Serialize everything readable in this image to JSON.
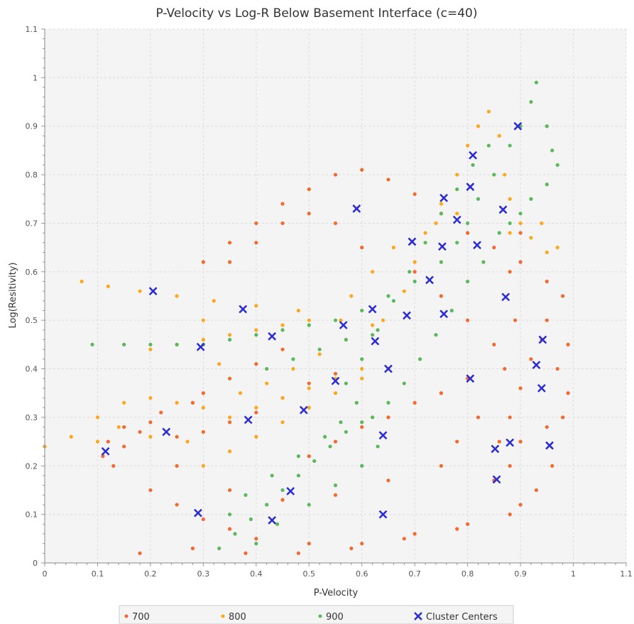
{
  "chart_data": {
    "type": "scatter",
    "title": "P-Velocity vs Log-R Below Basement Interface (c=40)",
    "xlabel": "P-Velocity",
    "ylabel": "Log(Resitivity)",
    "xlim": [
      0,
      1.1
    ],
    "ylim": [
      0,
      1.1
    ],
    "xticks": [
      "0",
      "0.1",
      "0.2",
      "0.3",
      "0.4",
      "0.5",
      "0.6",
      "0.7",
      "0.8",
      "0.9",
      "1",
      "1.1"
    ],
    "yticks": [
      "0",
      "0.1",
      "0.2",
      "0.3",
      "0.4",
      "0.5",
      "0.6",
      "0.7",
      "0.8",
      "0.9",
      "1",
      "1.1"
    ],
    "grid": true,
    "legend_position": "bottom",
    "colors": {
      "700": "#f26a2e",
      "800": "#fca81c",
      "900": "#5cb85c",
      "centers": "#2a2ad6",
      "plot_bg": "#f4f4f4",
      "grid": "#dcdcdc"
    },
    "series": [
      {
        "name": "700",
        "color": "#f26a2e",
        "points": [
          [
            0.11,
            0.22
          ],
          [
            0.13,
            0.2
          ],
          [
            0.15,
            0.24
          ],
          [
            0.18,
            0.27
          ],
          [
            0.2,
            0.29
          ],
          [
            0.25,
            0.26
          ],
          [
            0.3,
            0.27
          ],
          [
            0.35,
            0.29
          ],
          [
            0.4,
            0.31
          ],
          [
            0.45,
            0.34
          ],
          [
            0.5,
            0.37
          ],
          [
            0.55,
            0.39
          ],
          [
            0.2,
            0.15
          ],
          [
            0.25,
            0.12
          ],
          [
            0.3,
            0.09
          ],
          [
            0.35,
            0.07
          ],
          [
            0.4,
            0.05
          ],
          [
            0.5,
            0.04
          ],
          [
            0.6,
            0.04
          ],
          [
            0.7,
            0.06
          ],
          [
            0.8,
            0.08
          ],
          [
            0.9,
            0.12
          ],
          [
            0.3,
            0.62
          ],
          [
            0.35,
            0.66
          ],
          [
            0.4,
            0.7
          ],
          [
            0.45,
            0.74
          ],
          [
            0.5,
            0.77
          ],
          [
            0.55,
            0.8
          ],
          [
            0.6,
            0.81
          ],
          [
            0.65,
            0.79
          ],
          [
            0.7,
            0.76
          ],
          [
            0.75,
            0.72
          ],
          [
            0.8,
            0.68
          ],
          [
            0.85,
            0.65
          ],
          [
            0.9,
            0.62
          ],
          [
            0.95,
            0.58
          ],
          [
            0.98,
            0.55
          ],
          [
            0.85,
            0.17
          ],
          [
            0.86,
            0.25
          ],
          [
            0.88,
            0.3
          ],
          [
            0.9,
            0.36
          ],
          [
            0.92,
            0.42
          ],
          [
            0.94,
            0.46
          ],
          [
            0.95,
            0.5
          ],
          [
            0.97,
            0.4
          ],
          [
            0.98,
            0.3
          ],
          [
            0.96,
            0.2
          ],
          [
            0.93,
            0.15
          ],
          [
            0.88,
            0.2
          ],
          [
            0.87,
            0.4
          ],
          [
            0.89,
            0.5
          ],
          [
            0.88,
            0.6
          ],
          [
            0.9,
            0.68
          ],
          [
            0.5,
            0.22
          ],
          [
            0.55,
            0.25
          ],
          [
            0.6,
            0.28
          ],
          [
            0.65,
            0.3
          ],
          [
            0.7,
            0.33
          ],
          [
            0.75,
            0.35
          ],
          [
            0.8,
            0.38
          ],
          [
            0.3,
            0.35
          ],
          [
            0.35,
            0.38
          ],
          [
            0.4,
            0.41
          ],
          [
            0.45,
            0.44
          ],
          [
            0.25,
            0.2
          ],
          [
            0.35,
            0.15
          ],
          [
            0.45,
            0.13
          ],
          [
            0.55,
            0.14
          ],
          [
            0.65,
            0.17
          ],
          [
            0.75,
            0.2
          ],
          [
            0.6,
            0.65
          ],
          [
            0.55,
            0.7
          ],
          [
            0.5,
            0.72
          ],
          [
            0.45,
            0.7
          ],
          [
            0.4,
            0.66
          ],
          [
            0.35,
            0.62
          ],
          [
            0.7,
            0.6
          ],
          [
            0.75,
            0.55
          ],
          [
            0.8,
            0.5
          ],
          [
            0.85,
            0.45
          ],
          [
            0.78,
            0.25
          ],
          [
            0.82,
            0.3
          ],
          [
            0.9,
            0.25
          ],
          [
            0.95,
            0.28
          ],
          [
            0.99,
            0.45
          ],
          [
            0.99,
            0.35
          ],
          [
            0.18,
            0.02
          ],
          [
            0.28,
            0.03
          ],
          [
            0.38,
            0.02
          ],
          [
            0.48,
            0.02
          ],
          [
            0.58,
            0.03
          ],
          [
            0.68,
            0.05
          ],
          [
            0.78,
            0.07
          ],
          [
            0.88,
            0.1
          ],
          [
            0.12,
            0.25
          ],
          [
            0.15,
            0.28
          ],
          [
            0.22,
            0.31
          ],
          [
            0.28,
            0.33
          ]
        ]
      },
      {
        "name": "800",
        "color": "#fca81c",
        "points": [
          [
            0.0,
            0.24
          ],
          [
            0.05,
            0.26
          ],
          [
            0.1,
            0.3
          ],
          [
            0.15,
            0.33
          ],
          [
            0.2,
            0.34
          ],
          [
            0.25,
            0.33
          ],
          [
            0.3,
            0.32
          ],
          [
            0.35,
            0.3
          ],
          [
            0.4,
            0.32
          ],
          [
            0.45,
            0.34
          ],
          [
            0.5,
            0.36
          ],
          [
            0.55,
            0.38
          ],
          [
            0.6,
            0.4
          ],
          [
            0.07,
            0.58
          ],
          [
            0.12,
            0.57
          ],
          [
            0.18,
            0.56
          ],
          [
            0.25,
            0.55
          ],
          [
            0.32,
            0.54
          ],
          [
            0.4,
            0.53
          ],
          [
            0.48,
            0.52
          ],
          [
            0.56,
            0.5
          ],
          [
            0.64,
            0.5
          ],
          [
            0.68,
            0.56
          ],
          [
            0.7,
            0.62
          ],
          [
            0.72,
            0.68
          ],
          [
            0.75,
            0.74
          ],
          [
            0.78,
            0.8
          ],
          [
            0.8,
            0.86
          ],
          [
            0.82,
            0.9
          ],
          [
            0.84,
            0.93
          ],
          [
            0.86,
            0.88
          ],
          [
            0.87,
            0.8
          ],
          [
            0.88,
            0.75
          ],
          [
            0.9,
            0.7
          ],
          [
            0.92,
            0.67
          ],
          [
            0.95,
            0.64
          ],
          [
            0.97,
            0.65
          ],
          [
            0.94,
            0.7
          ],
          [
            0.88,
            0.68
          ],
          [
            0.2,
            0.44
          ],
          [
            0.25,
            0.45
          ],
          [
            0.3,
            0.46
          ],
          [
            0.35,
            0.47
          ],
          [
            0.4,
            0.48
          ],
          [
            0.45,
            0.49
          ],
          [
            0.5,
            0.5
          ],
          [
            0.3,
            0.2
          ],
          [
            0.35,
            0.23
          ],
          [
            0.4,
            0.26
          ],
          [
            0.45,
            0.29
          ],
          [
            0.5,
            0.32
          ],
          [
            0.55,
            0.35
          ],
          [
            0.6,
            0.38
          ],
          [
            0.65,
            0.4
          ],
          [
            0.3,
            0.5
          ],
          [
            0.33,
            0.41
          ],
          [
            0.37,
            0.35
          ],
          [
            0.42,
            0.37
          ],
          [
            0.47,
            0.4
          ],
          [
            0.52,
            0.43
          ],
          [
            0.57,
            0.46
          ],
          [
            0.62,
            0.49
          ],
          [
            0.1,
            0.25
          ],
          [
            0.14,
            0.28
          ],
          [
            0.2,
            0.26
          ],
          [
            0.27,
            0.25
          ],
          [
            0.58,
            0.55
          ],
          [
            0.62,
            0.6
          ],
          [
            0.66,
            0.65
          ],
          [
            0.74,
            0.7
          ],
          [
            0.78,
            0.72
          ]
        ]
      },
      {
        "name": "900",
        "color": "#5cb85c",
        "points": [
          [
            0.09,
            0.45
          ],
          [
            0.15,
            0.45
          ],
          [
            0.2,
            0.45
          ],
          [
            0.25,
            0.45
          ],
          [
            0.3,
            0.45
          ],
          [
            0.35,
            0.46
          ],
          [
            0.4,
            0.47
          ],
          [
            0.45,
            0.48
          ],
          [
            0.5,
            0.49
          ],
          [
            0.55,
            0.5
          ],
          [
            0.6,
            0.52
          ],
          [
            0.65,
            0.55
          ],
          [
            0.7,
            0.58
          ],
          [
            0.75,
            0.62
          ],
          [
            0.78,
            0.66
          ],
          [
            0.8,
            0.7
          ],
          [
            0.82,
            0.75
          ],
          [
            0.85,
            0.8
          ],
          [
            0.88,
            0.86
          ],
          [
            0.9,
            0.9
          ],
          [
            0.92,
            0.95
          ],
          [
            0.93,
            0.99
          ],
          [
            0.95,
            0.9
          ],
          [
            0.96,
            0.85
          ],
          [
            0.97,
            0.82
          ],
          [
            0.95,
            0.78
          ],
          [
            0.92,
            0.75
          ],
          [
            0.9,
            0.72
          ],
          [
            0.88,
            0.7
          ],
          [
            0.86,
            0.68
          ],
          [
            0.83,
            0.62
          ],
          [
            0.8,
            0.58
          ],
          [
            0.77,
            0.52
          ],
          [
            0.74,
            0.47
          ],
          [
            0.71,
            0.42
          ],
          [
            0.68,
            0.37
          ],
          [
            0.65,
            0.33
          ],
          [
            0.62,
            0.3
          ],
          [
            0.59,
            0.33
          ],
          [
            0.57,
            0.37
          ],
          [
            0.6,
            0.42
          ],
          [
            0.63,
            0.48
          ],
          [
            0.66,
            0.54
          ],
          [
            0.69,
            0.6
          ],
          [
            0.72,
            0.66
          ],
          [
            0.75,
            0.72
          ],
          [
            0.78,
            0.77
          ],
          [
            0.81,
            0.82
          ],
          [
            0.84,
            0.86
          ],
          [
            0.33,
            0.03
          ],
          [
            0.36,
            0.06
          ],
          [
            0.39,
            0.09
          ],
          [
            0.42,
            0.12
          ],
          [
            0.45,
            0.15
          ],
          [
            0.48,
            0.18
          ],
          [
            0.51,
            0.21
          ],
          [
            0.54,
            0.24
          ],
          [
            0.57,
            0.27
          ],
          [
            0.6,
            0.29
          ],
          [
            0.4,
            0.04
          ],
          [
            0.44,
            0.08
          ],
          [
            0.5,
            0.12
          ],
          [
            0.55,
            0.16
          ],
          [
            0.6,
            0.2
          ],
          [
            0.63,
            0.24
          ],
          [
            0.42,
            0.4
          ],
          [
            0.47,
            0.42
          ],
          [
            0.52,
            0.44
          ],
          [
            0.57,
            0.46
          ],
          [
            0.62,
            0.47
          ],
          [
            0.35,
            0.1
          ],
          [
            0.38,
            0.14
          ],
          [
            0.43,
            0.18
          ],
          [
            0.48,
            0.22
          ],
          [
            0.53,
            0.26
          ],
          [
            0.56,
            0.29
          ]
        ]
      }
    ],
    "cluster_centers": {
      "name": "Cluster Centers",
      "color": "#2a2ad6",
      "points": [
        [
          0.115,
          0.23
        ],
        [
          0.23,
          0.27
        ],
        [
          0.205,
          0.56
        ],
        [
          0.29,
          0.103
        ],
        [
          0.295,
          0.445
        ],
        [
          0.375,
          0.523
        ],
        [
          0.385,
          0.295
        ],
        [
          0.43,
          0.088
        ],
        [
          0.43,
          0.467
        ],
        [
          0.465,
          0.148
        ],
        [
          0.49,
          0.315
        ],
        [
          0.55,
          0.375
        ],
        [
          0.565,
          0.49
        ],
        [
          0.59,
          0.73
        ],
        [
          0.62,
          0.523
        ],
        [
          0.625,
          0.457
        ],
        [
          0.64,
          0.263
        ],
        [
          0.64,
          0.1
        ],
        [
          0.65,
          0.4
        ],
        [
          0.685,
          0.51
        ],
        [
          0.695,
          0.662
        ],
        [
          0.728,
          0.583
        ],
        [
          0.752,
          0.652
        ],
        [
          0.755,
          0.752
        ],
        [
          0.755,
          0.513
        ],
        [
          0.78,
          0.707
        ],
        [
          0.805,
          0.38
        ],
        [
          0.805,
          0.775
        ],
        [
          0.81,
          0.84
        ],
        [
          0.818,
          0.655
        ],
        [
          0.852,
          0.235
        ],
        [
          0.855,
          0.172
        ],
        [
          0.867,
          0.728
        ],
        [
          0.872,
          0.548
        ],
        [
          0.88,
          0.248
        ],
        [
          0.895,
          0.9
        ],
        [
          0.93,
          0.408
        ],
        [
          0.94,
          0.36
        ],
        [
          0.942,
          0.46
        ],
        [
          0.955,
          0.242
        ]
      ]
    }
  }
}
